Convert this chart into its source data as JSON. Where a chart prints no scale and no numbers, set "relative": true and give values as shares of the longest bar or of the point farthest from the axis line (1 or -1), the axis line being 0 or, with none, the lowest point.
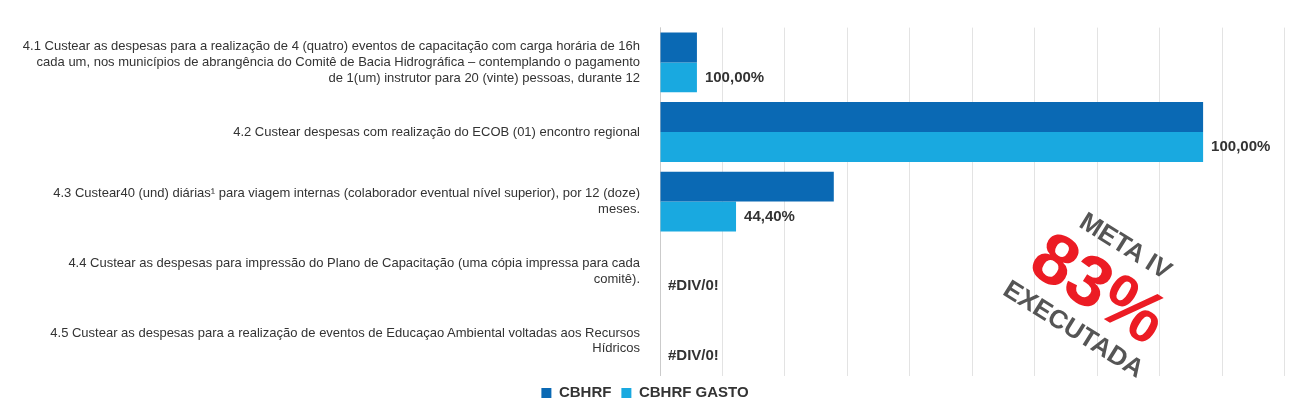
{
  "chart_data": {
    "type": "bar",
    "orientation": "horizontal",
    "relative": true,
    "grid": "x",
    "legend": "bottom",
    "categories": [
      "4.1 Custear as despesas para a realização de 4 (quatro) eventos de capacitação com carga horária de 16h cada um, nos municípios de abrangência do Comitê de Bacia Hidrográfica – contemplando o pagamento de 1(um) instrutor para 20 (vinte) pessoas, durante 12",
      "4.2 Custear despesas com realização do ECOB (01) encontro regional",
      "4.3 Custear40 (und) diárias¹ para viagem internas (colaborador eventual nível superior), por 12 (doze) meses.",
      "4.4 Custear as despesas para impressão do Plano de Capacitação (uma cópia impressa para cada comitê).",
      "4.5 Custear as despesas para a realização de eventos de Educaçao Ambiental voltadas aos Recursos Hídricos"
    ],
    "series": [
      {
        "name": "CBHRF",
        "color": "#0a69b4",
        "values": [
          0.068,
          1,
          0.32,
          0,
          0
        ]
      },
      {
        "name": "CBHRF GASTO",
        "color": "#19a9e0",
        "values": [
          0.068,
          1,
          0.14,
          0,
          0
        ]
      }
    ],
    "annotations": [
      {
        "text": "100,00%",
        "x": 0.068,
        "y": "4.1 Custear as despesas para a realização de 4 (quatro) eventos de capacitação com carga horária de 16h cada um, nos municípios de abrangência do Comitê de Bacia Hidrográfica – contemplando o pagamento de 1(um) instrutor para 20 (vinte) pessoas, durante 12"
      },
      {
        "text": "100,00%",
        "x": 1,
        "y": "4.2 Custear despesas com realização do ECOB (01) encontro regional"
      },
      {
        "text": "44,40%",
        "x": 0.14,
        "y": "4.3 Custear40 (und) diárias¹ para viagem internas (colaborador eventual nível superior), por 12 (doze) meses."
      },
      {
        "text": "#DIV/0!",
        "x": 0,
        "y": "4.4 Custear as despesas para impressão do Plano de Capacitação (uma cópia impressa para cada comitê)."
      },
      {
        "text": "#DIV/0!",
        "x": 0,
        "y": "4.5 Custear as despesas para a realização de eventos de Educaçao Ambiental voltadas aos Recursos Hídricos"
      },
      "META IV",
      "83%",
      "EXECUTADA"
    ]
  }
}
